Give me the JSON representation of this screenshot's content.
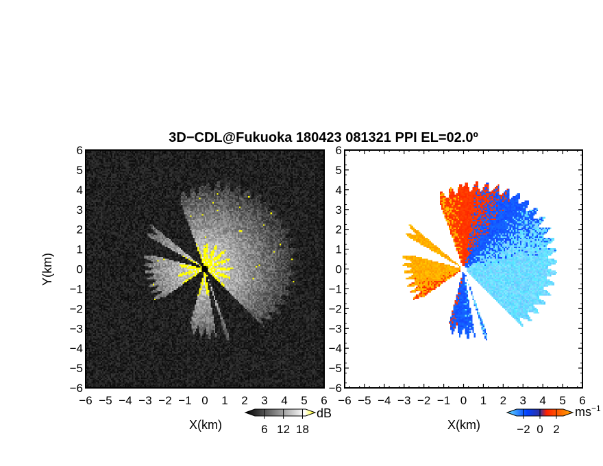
{
  "chart_data": {
    "title": "3D−CDL@Fukuoka 180423 081321 PPI EL=02.0º",
    "panels": [
      {
        "type": "heatmap",
        "quantity": "reflectivity",
        "xlabel": "X(km)",
        "ylabel": "Y(km)",
        "xlim": [
          -6,
          6
        ],
        "ylim": [
          -6,
          6
        ],
        "xticks": [
          "−6",
          "−5",
          "−4",
          "−3",
          "−2",
          "−1",
          "0",
          "1",
          "2",
          "3",
          "4",
          "5",
          "6"
        ],
        "yticks": [
          "−6",
          "−5",
          "−4",
          "−3",
          "−2",
          "−1",
          "0",
          "1",
          "2",
          "3",
          "4",
          "5",
          "6"
        ],
        "background_color": "#0e0e0e",
        "colorbar": {
          "unit": "dB",
          "ticks": [
            "6",
            "12",
            "18"
          ],
          "tick_values": [
            6,
            12,
            18
          ],
          "range": [
            0,
            22
          ],
          "colors": [
            "#000000",
            "#ffffff",
            "#ffff00"
          ]
        }
      },
      {
        "type": "heatmap",
        "quantity": "radial velocity",
        "xlabel": "X(km)",
        "ylabel": "",
        "xlim": [
          -6,
          6
        ],
        "ylim": [
          -6,
          6
        ],
        "xticks": [
          "−6",
          "−5",
          "−4",
          "−3",
          "−2",
          "−1",
          "0",
          "1",
          "2",
          "3",
          "4",
          "5",
          "6"
        ],
        "yticks": [
          "−6",
          "−5",
          "−4",
          "−3",
          "−2",
          "−1",
          "0",
          "1",
          "2",
          "3",
          "4",
          "5",
          "6"
        ],
        "background_color": "#ffffff",
        "colorbar": {
          "unit": "ms",
          "unit_exponent": "−1",
          "ticks": [
            "−2",
            "0",
            "2"
          ],
          "tick_values": [
            -2,
            0,
            2
          ],
          "range": [
            -4,
            4
          ],
          "colors": [
            "#66e0ff",
            "#0040ff",
            "#ff2000",
            "#ffaa00"
          ]
        }
      }
    ],
    "radar_origin": [
      0,
      0
    ],
    "max_range_km": 4.7,
    "blocked_sectors_deg": [
      [
        135,
        160
      ],
      [
        163,
        170
      ],
      [
        195,
        235
      ],
      [
        205,
        215
      ],
      [
        285,
        300
      ],
      [
        310,
        340
      ]
    ],
    "velocity_pattern": {
      "toward_radar_bearing_deg": 110,
      "negative_color": "#1060ff",
      "positive_color": "#ff3000"
    }
  }
}
